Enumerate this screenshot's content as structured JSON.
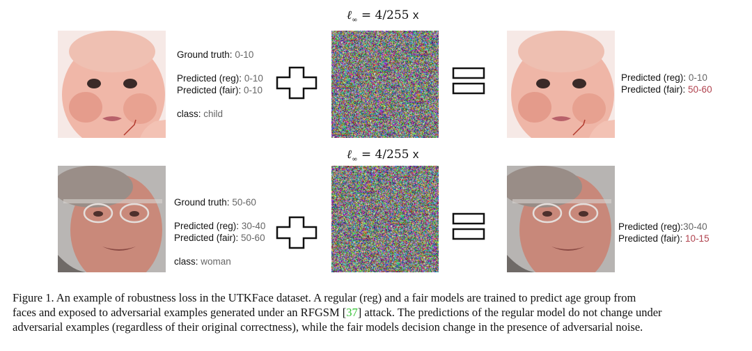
{
  "row1": {
    "eps_label": "4/255",
    "eps_suffix": "x",
    "ground_truth_key": "Ground truth",
    "ground_truth_value": "0-10",
    "pred_reg_key": "Predicted (reg)",
    "pred_reg_value": "0-10",
    "pred_fair_key": "Predicted (fair)",
    "pred_fair_value": "0-10",
    "class_key": "class",
    "class_value": "child",
    "out_pred_reg_key": "Predicted (reg)",
    "out_pred_reg_value": "0-10",
    "out_pred_fair_key": "Predicted (fair)",
    "out_pred_fair_value": "50-60"
  },
  "row2": {
    "eps_label": "4/255",
    "eps_suffix": "x",
    "ground_truth_key": "Ground truth",
    "ground_truth_value": "50-60",
    "pred_reg_key": "Predicted (reg)",
    "pred_reg_value": "30-40",
    "pred_fair_key": "Predicted (fair)",
    "pred_fair_value": "50-60",
    "class_key": "class",
    "class_value": "woman",
    "out_pred_reg_key": "Predicted (reg)",
    "out_pred_reg_value": "30-40",
    "out_pred_fair_key": "Predicted (fair)",
    "out_pred_fair_value": "10-15"
  },
  "colors": {
    "changed_value": "#b0424e",
    "value_text": "#666666",
    "citation": "#2fbf2f"
  },
  "caption": {
    "line1": "Figure 1. An example of robustness loss in the UTKFace dataset. A regular (reg) and a fair models are trained to predict age group from",
    "line2_pre": "faces and exposed to adversarial examples generated under an RFGSM [",
    "line2_ref": "37",
    "line2_post": "] attack. The predictions of the regular model do not change under",
    "line3": "adversarial examples (regardless of their original correctness), while the fair models decision change in the presence of adversarial noise."
  }
}
